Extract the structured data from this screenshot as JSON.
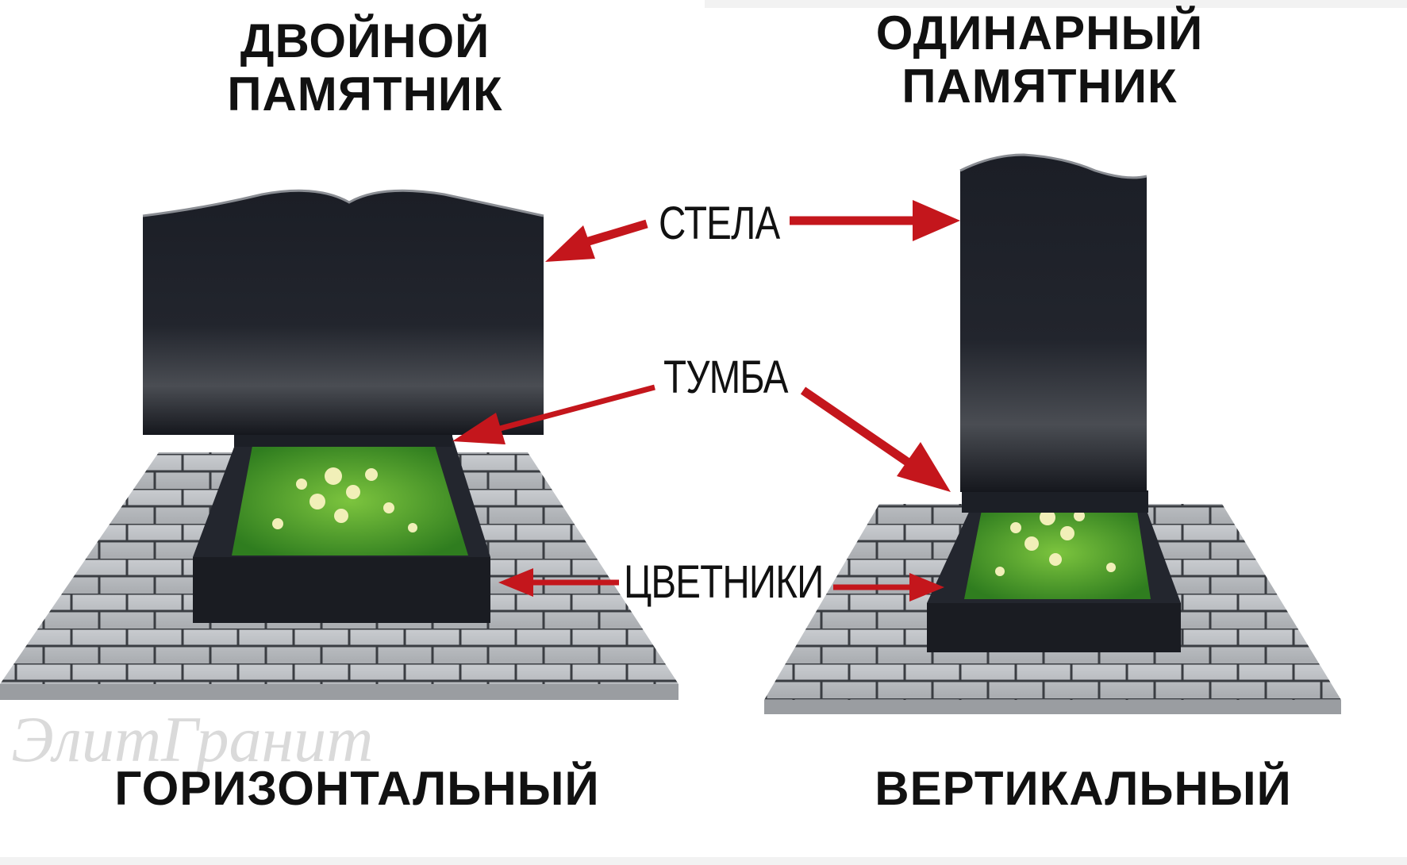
{
  "headings": {
    "left_top": [
      "ДВОЙНОЙ",
      "ПАМЯТНИК"
    ],
    "right_top": [
      "ОДИНАРНЫЙ",
      "ПАМЯТНИК"
    ],
    "left_bottom": "ГОРИЗОНТАЛЬНЫЙ",
    "right_bottom": "ВЕРТИКАЛЬНЫЙ"
  },
  "callouts": {
    "stela": "СТЕЛА",
    "tumba": "ТУМБА",
    "flowerbeds": "ЦВЕТНИКИ"
  },
  "watermark": "ЭлитГранит",
  "colors": {
    "arrow": "#c4161c",
    "granite": "#15171d",
    "paving": "#b9bcbf",
    "paving_lines": "#3a3d42",
    "grass": "#3f9b2a",
    "flower": "#f1efb8"
  }
}
